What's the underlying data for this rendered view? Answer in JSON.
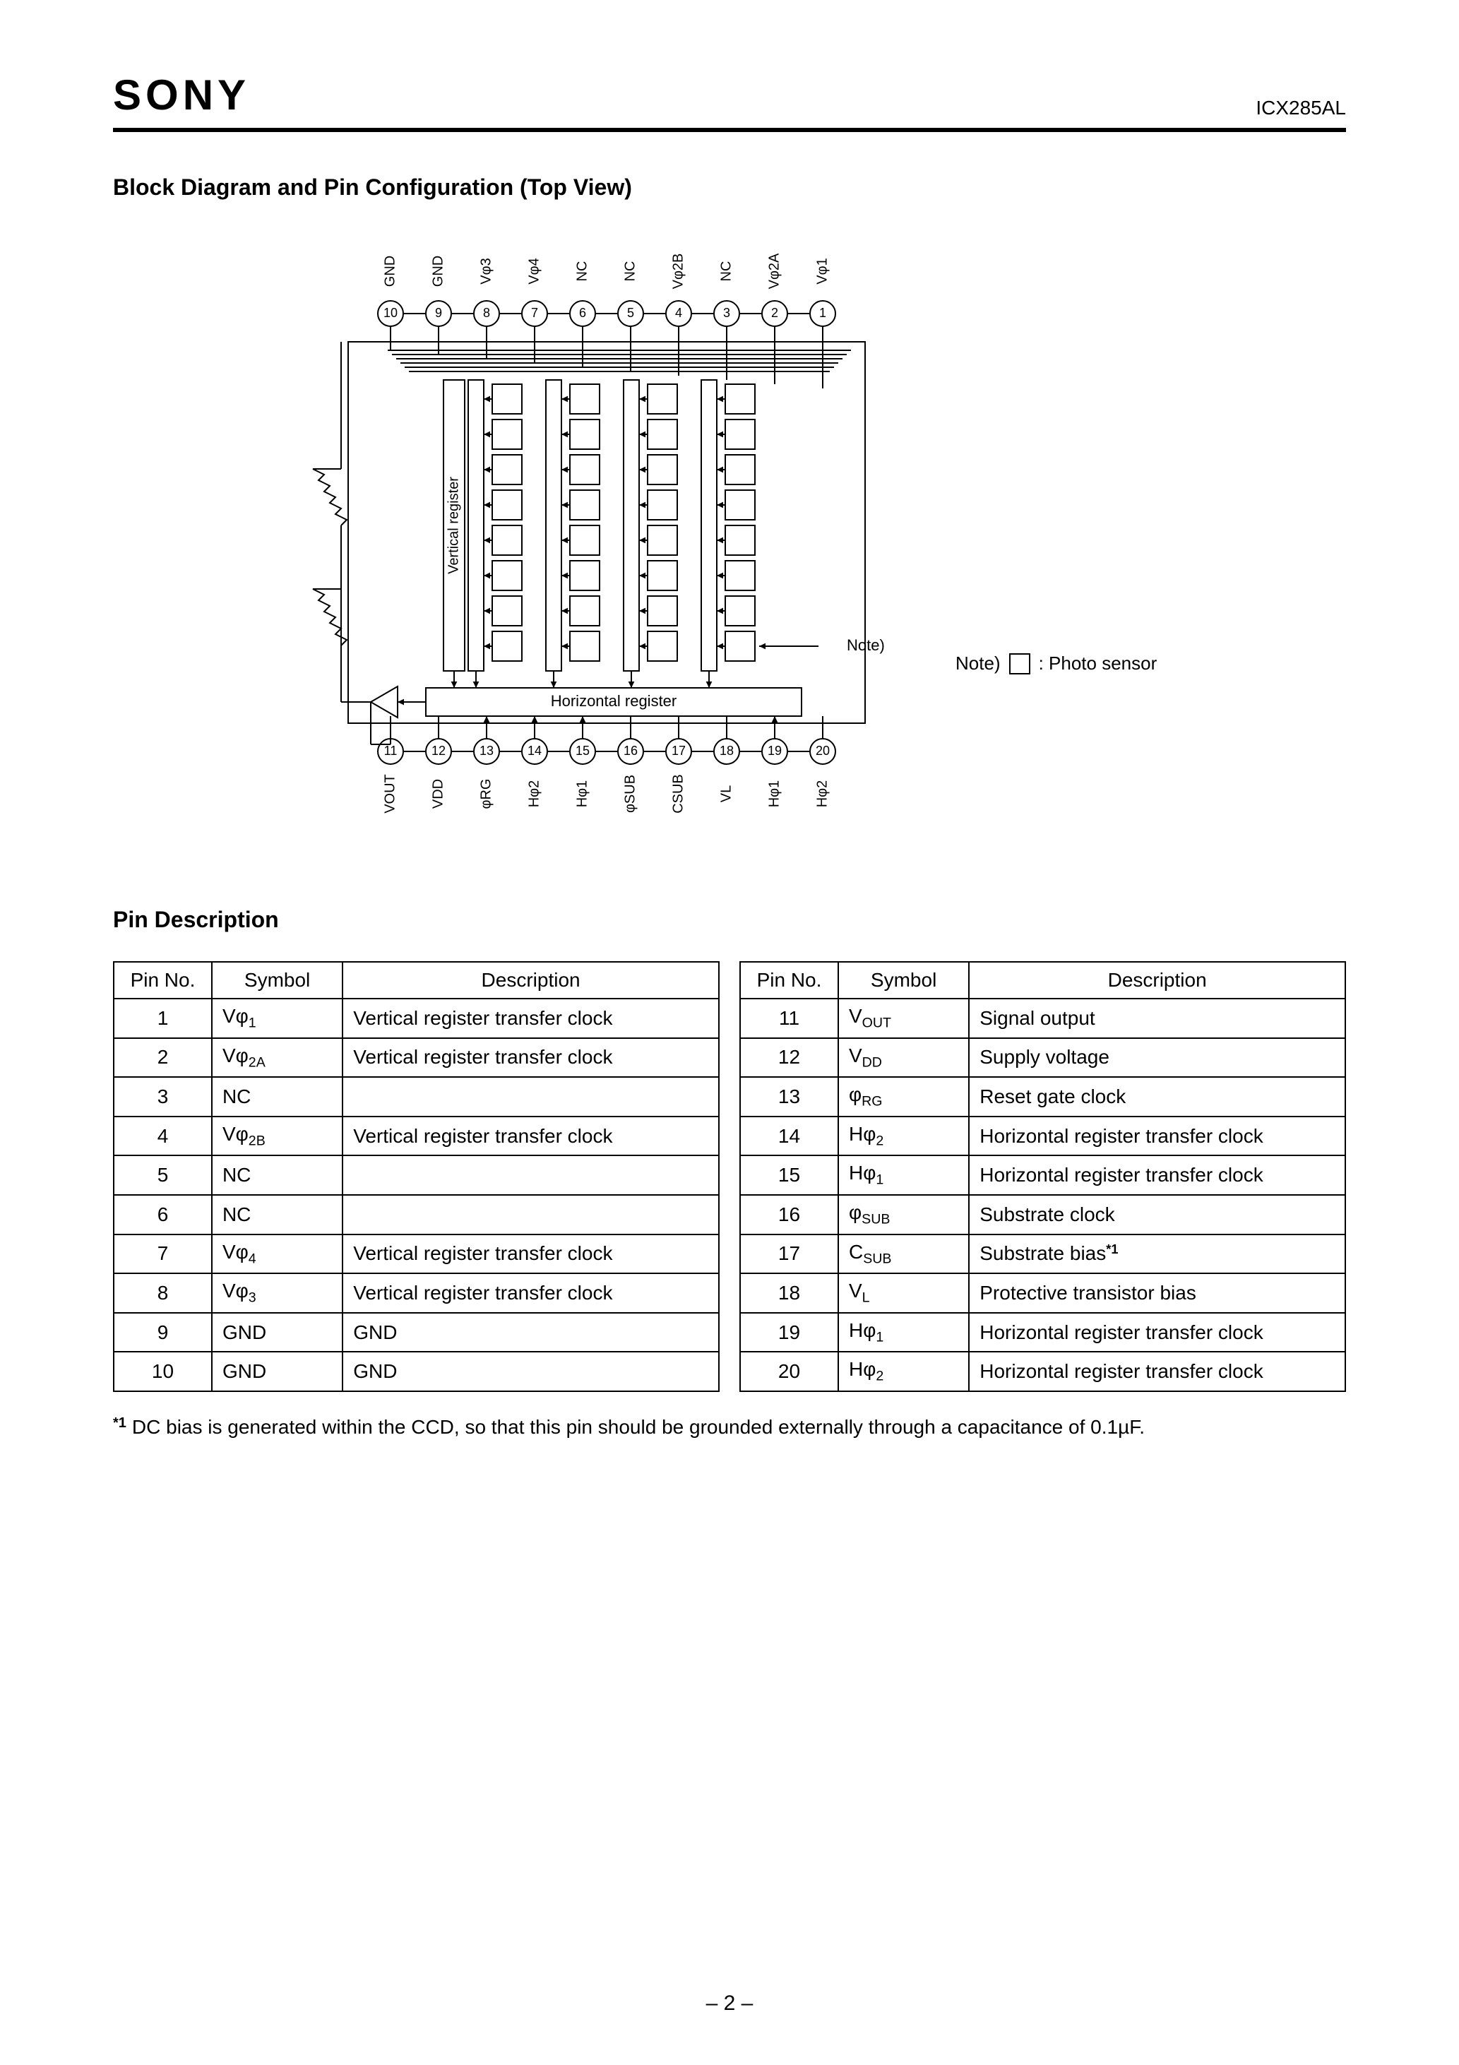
{
  "header": {
    "brand": "SONY",
    "part_number": "ICX285AL"
  },
  "section1_title": "Block Diagram and Pin Configuration (Top View)",
  "diagram": {
    "top_pins": [
      {
        "num": 10,
        "label": "GND"
      },
      {
        "num": 9,
        "label": "GND"
      },
      {
        "num": 8,
        "label": "Vφ3"
      },
      {
        "num": 7,
        "label": "Vφ4"
      },
      {
        "num": 6,
        "label": "NC"
      },
      {
        "num": 5,
        "label": "NC"
      },
      {
        "num": 4,
        "label": "Vφ2B"
      },
      {
        "num": 3,
        "label": "NC"
      },
      {
        "num": 2,
        "label": "Vφ2A"
      },
      {
        "num": 1,
        "label": "Vφ1"
      }
    ],
    "bottom_pins": [
      {
        "num": 11,
        "label": "VOUT"
      },
      {
        "num": 12,
        "label": "VDD"
      },
      {
        "num": 13,
        "label": "φRG"
      },
      {
        "num": 14,
        "label": "Hφ2"
      },
      {
        "num": 15,
        "label": "Hφ1"
      },
      {
        "num": 16,
        "label": "φSUB"
      },
      {
        "num": 17,
        "label": "CSUB"
      },
      {
        "num": 18,
        "label": "VL"
      },
      {
        "num": 19,
        "label": "Hφ1"
      },
      {
        "num": 20,
        "label": "Hφ2"
      }
    ],
    "vertical_register_label": "Vertical register",
    "horizontal_register_label": "Horizontal register",
    "note_arrow_label": "Note)",
    "legend_prefix": "Note)",
    "legend_text": ": Photo sensor",
    "stroke_color": "#000000",
    "bg_color": "#ffffff",
    "pin_circle_radius": 18,
    "sensor_rows": 8,
    "sensor_cols": 4,
    "sensor_box": 42
  },
  "section2_title": "Pin Description",
  "pin_table": {
    "headers": [
      "Pin No.",
      "Symbol",
      "Description",
      "Pin No.",
      "Symbol",
      "Description"
    ],
    "rows": [
      [
        "1",
        "Vφ1",
        "Vertical register transfer clock",
        "11",
        "VOUT",
        "Signal output"
      ],
      [
        "2",
        "Vφ2A",
        "Vertical register transfer clock",
        "12",
        "VDD",
        "Supply voltage"
      ],
      [
        "3",
        "NC",
        "",
        "13",
        "φRG",
        "Reset gate clock"
      ],
      [
        "4",
        "Vφ2B",
        "Vertical register transfer clock",
        "14",
        "Hφ2",
        "Horizontal register transfer clock"
      ],
      [
        "5",
        "NC",
        "",
        "15",
        "Hφ1",
        "Horizontal register transfer clock"
      ],
      [
        "6",
        "NC",
        "",
        "16",
        "φSUB",
        "Substrate clock"
      ],
      [
        "7",
        "Vφ4",
        "Vertical register transfer clock",
        "17",
        "CSUB",
        "Substrate bias*1"
      ],
      [
        "8",
        "Vφ3",
        "Vertical register transfer clock",
        "18",
        "VL",
        "Protective transistor bias"
      ],
      [
        "9",
        "GND",
        "GND",
        "19",
        "Hφ1",
        "Horizontal register transfer clock"
      ],
      [
        "10",
        "GND",
        "GND",
        "20",
        "Hφ2",
        "Horizontal register transfer clock"
      ]
    ]
  },
  "footnote": {
    "mark": "*1",
    "text": "DC bias is generated within the CCD, so that this pin should be grounded externally through a capacitance of 0.1µF."
  },
  "page_number": "– 2 –"
}
